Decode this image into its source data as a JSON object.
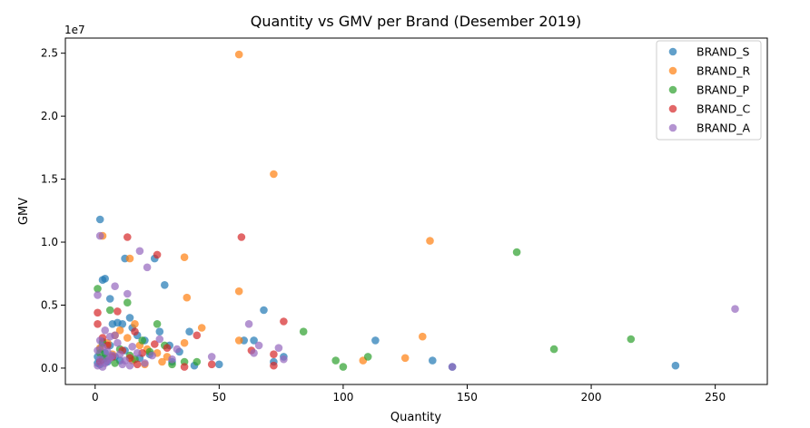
{
  "chart_data": {
    "type": "scatter",
    "title": "Quantity vs GMV per Brand (Desember 2019)",
    "xlabel": "Quantity",
    "ylabel": "GMV",
    "y_offset_label": "1e7",
    "xlim": [
      -12,
      271
    ],
    "ylim": [
      -1300000,
      26200000
    ],
    "x_ticks": [
      0,
      50,
      100,
      150,
      200,
      250
    ],
    "x_tick_labels": [
      "0",
      "50",
      "100",
      "150",
      "200",
      "250"
    ],
    "y_ticks": [
      0,
      5000000,
      10000000,
      15000000,
      20000000,
      25000000
    ],
    "y_tick_labels": [
      "0.0",
      "0.5",
      "1.0",
      "1.5",
      "2.0",
      "2.5"
    ],
    "grid": false,
    "legend_position": "top-right",
    "series": [
      {
        "name": "BRAND_S",
        "color": "#1f77b4",
        "points": [
          [
            2,
            11800000
          ],
          [
            3,
            7000000
          ],
          [
            4,
            7100000
          ],
          [
            6,
            5500000
          ],
          [
            7,
            3500000
          ],
          [
            9,
            3600000
          ],
          [
            11,
            3500000
          ],
          [
            12,
            8700000
          ],
          [
            14,
            4000000
          ],
          [
            15,
            3200000
          ],
          [
            17,
            2600000
          ],
          [
            20,
            2200000
          ],
          [
            24,
            8700000
          ],
          [
            26,
            2900000
          ],
          [
            28,
            6600000
          ],
          [
            30,
            1800000
          ],
          [
            34,
            1300000
          ],
          [
            38,
            2900000
          ],
          [
            40,
            200000
          ],
          [
            50,
            300000
          ],
          [
            60,
            2200000
          ],
          [
            64,
            2200000
          ],
          [
            68,
            4600000
          ],
          [
            72,
            500000
          ],
          [
            76,
            900000
          ],
          [
            113,
            2200000
          ],
          [
            136,
            600000
          ],
          [
            144,
            100000
          ],
          [
            234,
            200000
          ],
          [
            1,
            400000
          ],
          [
            1,
            900000
          ],
          [
            2,
            1500000
          ],
          [
            2,
            300000
          ],
          [
            3,
            700000
          ],
          [
            3,
            2100000
          ],
          [
            4,
            1200000
          ],
          [
            5,
            500000
          ],
          [
            6,
            1800000
          ],
          [
            8,
            900000
          ],
          [
            10,
            600000
          ],
          [
            12,
            1400000
          ],
          [
            18,
            800000
          ],
          [
            22,
            1100000
          ],
          [
            31,
            500000
          ]
        ]
      },
      {
        "name": "BRAND_R",
        "color": "#ff7f0e",
        "points": [
          [
            58,
            24900000
          ],
          [
            72,
            15400000
          ],
          [
            3,
            10500000
          ],
          [
            135,
            10100000
          ],
          [
            14,
            8700000
          ],
          [
            36,
            8800000
          ],
          [
            37,
            5600000
          ],
          [
            58,
            6100000
          ],
          [
            16,
            3500000
          ],
          [
            43,
            3200000
          ],
          [
            132,
            2500000
          ],
          [
            58,
            2200000
          ],
          [
            36,
            2000000
          ],
          [
            125,
            800000
          ],
          [
            108,
            600000
          ],
          [
            10,
            3000000
          ],
          [
            8,
            2600000
          ],
          [
            13,
            2400000
          ],
          [
            18,
            1800000
          ],
          [
            21,
            1500000
          ],
          [
            25,
            1200000
          ],
          [
            29,
            900000
          ],
          [
            5,
            2000000
          ],
          [
            2,
            1600000
          ],
          [
            7,
            1100000
          ],
          [
            15,
            600000
          ],
          [
            20,
            300000
          ],
          [
            27,
            500000
          ]
        ]
      },
      {
        "name": "BRAND_P",
        "color": "#2ca02c",
        "points": [
          [
            1,
            6300000
          ],
          [
            13,
            5200000
          ],
          [
            6,
            4600000
          ],
          [
            25,
            3500000
          ],
          [
            84,
            2900000
          ],
          [
            170,
            9200000
          ],
          [
            216,
            2300000
          ],
          [
            185,
            1500000
          ],
          [
            110,
            900000
          ],
          [
            97,
            600000
          ],
          [
            100,
            100000
          ],
          [
            41,
            500000
          ],
          [
            36,
            500000
          ],
          [
            19,
            2200000
          ],
          [
            10,
            1500000
          ],
          [
            3,
            2000000
          ],
          [
            2,
            1200000
          ],
          [
            4,
            800000
          ],
          [
            14,
            1000000
          ],
          [
            22,
            1300000
          ],
          [
            28,
            1800000
          ],
          [
            8,
            400000
          ],
          [
            16,
            700000
          ],
          [
            31,
            300000
          ]
        ]
      },
      {
        "name": "BRAND_C",
        "color": "#d62728",
        "points": [
          [
            13,
            10400000
          ],
          [
            59,
            10400000
          ],
          [
            25,
            9000000
          ],
          [
            1,
            4400000
          ],
          [
            9,
            4500000
          ],
          [
            1,
            3500000
          ],
          [
            76,
            3700000
          ],
          [
            16,
            2900000
          ],
          [
            41,
            2600000
          ],
          [
            63,
            1400000
          ],
          [
            72,
            1100000
          ],
          [
            72,
            200000
          ],
          [
            47,
            300000
          ],
          [
            36,
            100000
          ],
          [
            24,
            1900000
          ],
          [
            19,
            1200000
          ],
          [
            3,
            2400000
          ],
          [
            5,
            1800000
          ],
          [
            7,
            900000
          ],
          [
            11,
            1400000
          ],
          [
            14,
            800000
          ],
          [
            17,
            300000
          ],
          [
            29,
            1600000
          ],
          [
            2,
            500000
          ]
        ]
      },
      {
        "name": "BRAND_A",
        "color": "#9467bd",
        "points": [
          [
            2,
            10500000
          ],
          [
            18,
            9300000
          ],
          [
            21,
            8000000
          ],
          [
            8,
            6500000
          ],
          [
            13,
            5900000
          ],
          [
            1,
            5800000
          ],
          [
            62,
            3500000
          ],
          [
            258,
            4700000
          ],
          [
            66,
            1800000
          ],
          [
            74,
            1600000
          ],
          [
            64,
            1200000
          ],
          [
            76,
            700000
          ],
          [
            47,
            900000
          ],
          [
            31,
            700000
          ],
          [
            33,
            1500000
          ],
          [
            26,
            2300000
          ],
          [
            20,
            400000
          ],
          [
            144,
            100000
          ],
          [
            4,
            3000000
          ],
          [
            6,
            2500000
          ],
          [
            9,
            2000000
          ],
          [
            3,
            1700000
          ],
          [
            5,
            1300000
          ],
          [
            7,
            1000000
          ],
          [
            2,
            700000
          ],
          [
            4,
            400000
          ],
          [
            1,
            200000
          ],
          [
            10,
            1100000
          ],
          [
            12,
            600000
          ],
          [
            15,
            1700000
          ],
          [
            11,
            300000
          ],
          [
            8,
            2600000
          ],
          [
            23,
            1000000
          ],
          [
            3,
            100000
          ],
          [
            6,
            800000
          ],
          [
            1,
            1400000
          ],
          [
            2,
            2200000
          ],
          [
            14,
            200000
          ],
          [
            17,
            1200000
          ],
          [
            5,
            600000
          ]
        ]
      }
    ]
  }
}
